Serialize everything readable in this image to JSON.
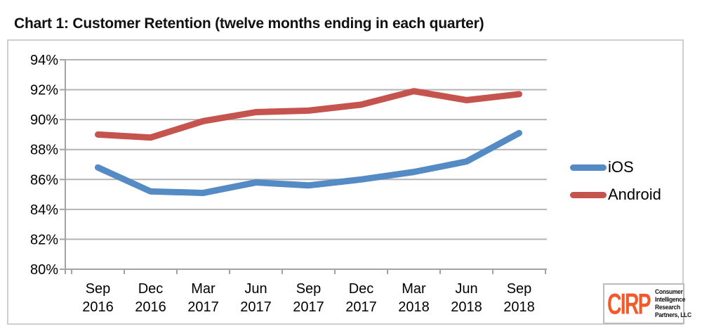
{
  "page": {
    "title": "Chart 1: Customer Retention (twelve months ending in each quarter)"
  },
  "chart_data": {
    "type": "line",
    "title": "Chart 1: Customer Retention (twelve months ending in each quarter)",
    "categories": [
      "Sep 2016",
      "Dec 2016",
      "Mar 2017",
      "Jun 2017",
      "Sep 2017",
      "Dec 2017",
      "Mar 2018",
      "Jun 2018",
      "Sep 2018"
    ],
    "series": [
      {
        "name": "iOS",
        "color": "#548BC4",
        "values": [
          86.8,
          85.2,
          85.1,
          85.8,
          85.6,
          86.0,
          86.5,
          87.2,
          89.1
        ]
      },
      {
        "name": "Android",
        "color": "#C5534E",
        "values": [
          89.0,
          88.8,
          89.9,
          90.5,
          90.6,
          91.0,
          91.9,
          91.3,
          91.7
        ]
      }
    ],
    "ylim": [
      80,
      94
    ],
    "ytick_step": 2,
    "ytick_labels": [
      "94%",
      "92%",
      "90%",
      "88%",
      "86%",
      "84%",
      "82%",
      "80%"
    ],
    "xlabel": "",
    "ylabel": "",
    "grid": true,
    "legend_position": "right-middle",
    "style": {
      "gridline_color": "#b4b4b4",
      "axis_color": "#a3a3a3",
      "line_width": 9
    }
  },
  "logo": {
    "brand": "CIRP",
    "brand_color": "#F15B2B",
    "lines": [
      "Consumer",
      "Intelligence",
      "Research",
      "Partners, LLC"
    ]
  }
}
